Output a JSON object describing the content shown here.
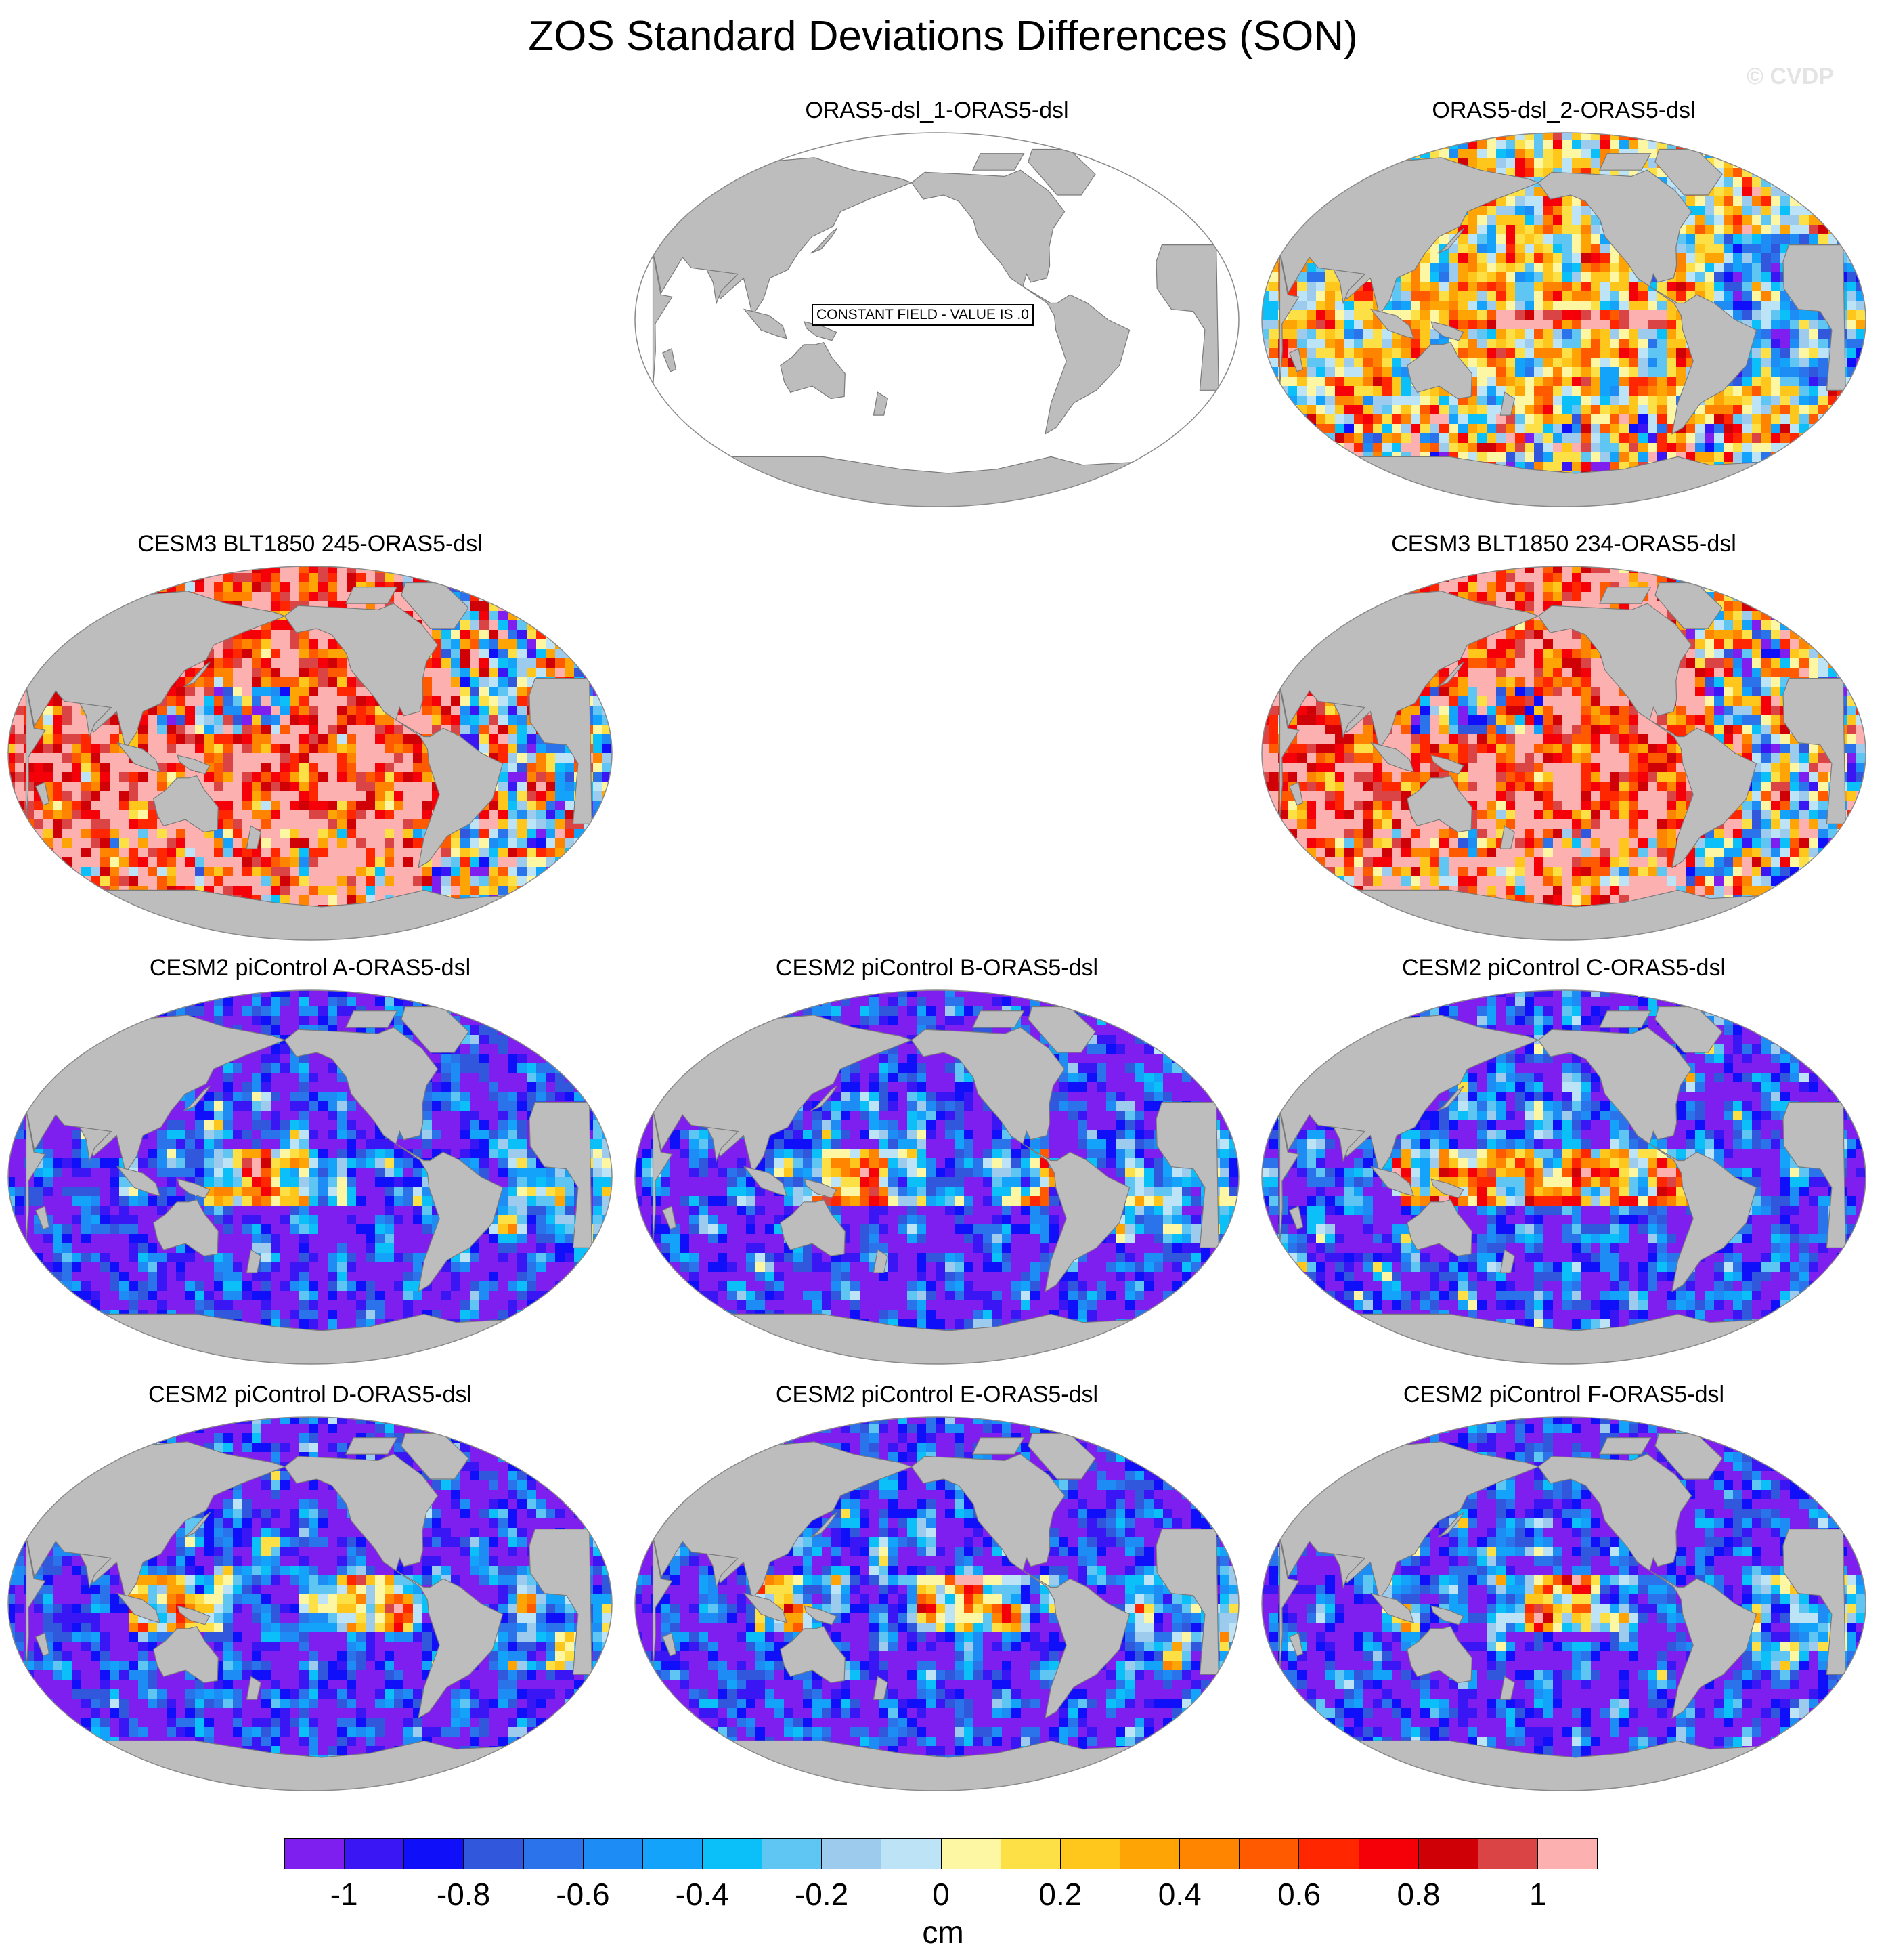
{
  "title": "ZOS Standard Deviations Differences (SON)",
  "watermark": "© CVDP",
  "colors": {
    "land": "#bdbdbd",
    "ocean_blank": "#ffffff",
    "coast": "#7a7a7a"
  },
  "map_projection": "robinson",
  "panels": [
    {
      "id": "p1",
      "title": "ORAS5-dsl_1-ORAS5-dsl",
      "pattern": "constant",
      "note": "CONSTANT FIELD - VALUE IS .0"
    },
    {
      "id": "p2",
      "title": "ORAS5-dsl_2-ORAS5-dsl",
      "pattern": "mixed"
    },
    {
      "id": "p3",
      "title": "CESM3 BLT1850 245-ORAS5-dsl",
      "pattern": "positive"
    },
    {
      "id": "p4",
      "title": "CESM3 BLT1850 234-ORAS5-dsl",
      "pattern": "positive"
    },
    {
      "id": "p5",
      "title": "CESM2 piControl A-ORAS5-dsl",
      "pattern": "negative"
    },
    {
      "id": "p6",
      "title": "CESM2 piControl B-ORAS5-dsl",
      "pattern": "negative"
    },
    {
      "id": "p7",
      "title": "CESM2 piControl C-ORAS5-dsl",
      "pattern": "negative_warm"
    },
    {
      "id": "p8",
      "title": "CESM2 piControl D-ORAS5-dsl",
      "pattern": "negative"
    },
    {
      "id": "p9",
      "title": "CESM2 piControl E-ORAS5-dsl",
      "pattern": "negative"
    },
    {
      "id": "p10",
      "title": "CESM2 piControl F-ORAS5-dsl",
      "pattern": "negative"
    }
  ],
  "colorbar": {
    "colors": [
      "#7f1fef",
      "#3b16f5",
      "#0f0ffa",
      "#3158dc",
      "#2a73ea",
      "#1e8cf5",
      "#13a3fb",
      "#0bc0f8",
      "#5fc6f4",
      "#9ccbee",
      "#bde3f7",
      "#fdf7a3",
      "#fde046",
      "#ffc61c",
      "#ffa405",
      "#ff8400",
      "#ff5a00",
      "#ff2600",
      "#f50008",
      "#cf0006",
      "#db4444",
      "#fdb0b0"
    ],
    "labels": [
      "-1",
      "-0.8",
      "-0.6",
      "-0.4",
      "-0.2",
      "0",
      "0.2",
      "0.4",
      "0.6",
      "0.8",
      "1"
    ],
    "unit": "cm"
  }
}
